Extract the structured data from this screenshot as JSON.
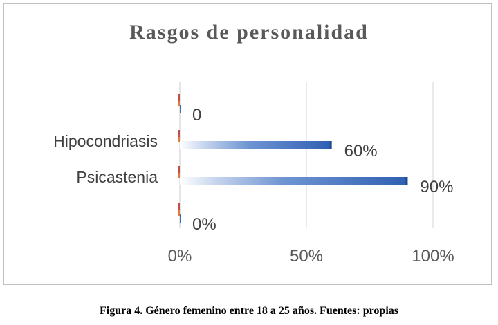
{
  "chart_data": {
    "type": "bar",
    "orientation": "horizontal",
    "title": "Rasgos de personalidad",
    "categories": [
      "",
      "Hipocondriasis",
      "Psicastenia",
      ""
    ],
    "series": [
      {
        "values": [
          0,
          60,
          90,
          0
        ]
      }
    ],
    "data_labels": [
      "0",
      "60%",
      "90%",
      "0%"
    ],
    "xlim": [
      0,
      100
    ],
    "x_ticks": [
      "0%",
      "50%",
      "100%"
    ],
    "grid": true,
    "legend": "none",
    "bar_color": "#3a6bbf",
    "stub_colors": [
      "#c0504d",
      "#e07b39"
    ]
  },
  "caption": "Figura 4. Género femenino entre 18 a 25 años. Fuentes: propias"
}
